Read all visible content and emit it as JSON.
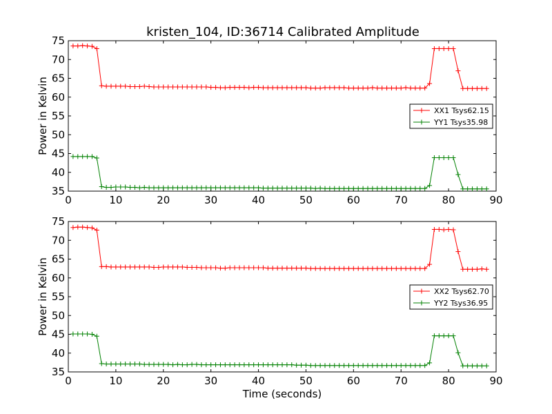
{
  "figure": {
    "title": "kristen_104, ID:36714 Calibrated Amplitude"
  },
  "chart_data": [
    {
      "type": "line",
      "title": "kristen_104, ID:36714 Calibrated Amplitude",
      "xlabel": "",
      "ylabel": "Power in Kelvin",
      "xlim": [
        0,
        90
      ],
      "ylim": [
        35,
        75
      ],
      "xticks": [
        "0",
        "10",
        "20",
        "30",
        "40",
        "50",
        "60",
        "70",
        "80",
        "90"
      ],
      "yticks": [
        "35",
        "40",
        "45",
        "50",
        "55",
        "60",
        "65",
        "70",
        "75"
      ],
      "grid": false,
      "legend_position": "center-right",
      "marker": "+",
      "series": [
        {
          "name": "XX1 Tsys62.15",
          "color": "#ff0000",
          "x": [
            1,
            2,
            3,
            4,
            5,
            6,
            7,
            8,
            9,
            10,
            11,
            12,
            13,
            14,
            15,
            16,
            17,
            18,
            19,
            20,
            21,
            22,
            23,
            24,
            25,
            26,
            27,
            28,
            29,
            30,
            31,
            32,
            33,
            34,
            35,
            36,
            37,
            38,
            39,
            40,
            41,
            42,
            43,
            44,
            45,
            46,
            47,
            48,
            49,
            50,
            51,
            52,
            53,
            54,
            55,
            56,
            57,
            58,
            59,
            60,
            61,
            62,
            63,
            64,
            65,
            66,
            67,
            68,
            69,
            70,
            71,
            72,
            73,
            74,
            75,
            76,
            77,
            78,
            79,
            80,
            81,
            82,
            83,
            84,
            85,
            86,
            87,
            88
          ],
          "y": [
            73.6,
            73.6,
            73.7,
            73.6,
            73.5,
            72.9,
            63.0,
            62.9,
            62.9,
            62.9,
            62.9,
            62.9,
            62.8,
            62.8,
            62.8,
            62.9,
            62.8,
            62.7,
            62.7,
            62.7,
            62.7,
            62.7,
            62.7,
            62.7,
            62.7,
            62.7,
            62.7,
            62.7,
            62.7,
            62.6,
            62.6,
            62.5,
            62.5,
            62.6,
            62.6,
            62.6,
            62.6,
            62.5,
            62.6,
            62.6,
            62.5,
            62.5,
            62.5,
            62.5,
            62.5,
            62.5,
            62.5,
            62.5,
            62.5,
            62.5,
            62.4,
            62.4,
            62.4,
            62.5,
            62.5,
            62.5,
            62.5,
            62.5,
            62.4,
            62.4,
            62.4,
            62.4,
            62.4,
            62.5,
            62.4,
            62.4,
            62.4,
            62.4,
            62.4,
            62.4,
            62.5,
            62.4,
            62.4,
            62.4,
            62.4,
            63.6,
            72.9,
            72.9,
            72.9,
            72.9,
            72.9,
            67.0,
            62.3,
            62.3,
            62.3,
            62.3,
            62.3,
            62.3
          ]
        },
        {
          "name": "YY1 Tsys35.98",
          "color": "#008000",
          "x": [
            1,
            2,
            3,
            4,
            5,
            6,
            7,
            8,
            9,
            10,
            11,
            12,
            13,
            14,
            15,
            16,
            17,
            18,
            19,
            20,
            21,
            22,
            23,
            24,
            25,
            26,
            27,
            28,
            29,
            30,
            31,
            32,
            33,
            34,
            35,
            36,
            37,
            38,
            39,
            40,
            41,
            42,
            43,
            44,
            45,
            46,
            47,
            48,
            49,
            50,
            51,
            52,
            53,
            54,
            55,
            56,
            57,
            58,
            59,
            60,
            61,
            62,
            63,
            64,
            65,
            66,
            67,
            68,
            69,
            70,
            71,
            72,
            73,
            74,
            75,
            76,
            77,
            78,
            79,
            80,
            81,
            82,
            83,
            84,
            85,
            86,
            87,
            88
          ],
          "y": [
            44.2,
            44.2,
            44.2,
            44.2,
            44.2,
            43.8,
            36.2,
            36.0,
            36.0,
            36.1,
            36.1,
            36.1,
            36.0,
            36.0,
            35.9,
            36.0,
            35.9,
            35.9,
            35.9,
            35.9,
            35.9,
            35.9,
            35.9,
            35.9,
            35.9,
            35.9,
            35.9,
            35.9,
            35.9,
            35.9,
            35.9,
            35.9,
            35.9,
            35.9,
            35.9,
            35.9,
            35.9,
            35.9,
            35.9,
            35.9,
            35.8,
            35.8,
            35.8,
            35.8,
            35.8,
            35.8,
            35.8,
            35.8,
            35.8,
            35.8,
            35.8,
            35.7,
            35.8,
            35.7,
            35.7,
            35.7,
            35.7,
            35.7,
            35.7,
            35.7,
            35.7,
            35.7,
            35.7,
            35.7,
            35.7,
            35.7,
            35.7,
            35.7,
            35.7,
            35.7,
            35.7,
            35.7,
            35.7,
            35.7,
            35.7,
            36.5,
            43.9,
            43.9,
            43.9,
            43.9,
            43.9,
            39.4,
            35.6,
            35.6,
            35.6,
            35.6,
            35.6,
            35.6
          ]
        }
      ]
    },
    {
      "type": "line",
      "title": "",
      "xlabel": "Time (seconds)",
      "ylabel": "Power in Kelvin",
      "xlim": [
        0,
        90
      ],
      "ylim": [
        35,
        75
      ],
      "xticks": [
        "0",
        "10",
        "20",
        "30",
        "40",
        "50",
        "60",
        "70",
        "80",
        "90"
      ],
      "yticks": [
        "35",
        "40",
        "45",
        "50",
        "55",
        "60",
        "65",
        "70",
        "75"
      ],
      "grid": false,
      "legend_position": "center-right",
      "marker": "+",
      "series": [
        {
          "name": "XX2 Tsys62.70",
          "color": "#ff0000",
          "x": [
            1,
            2,
            3,
            4,
            5,
            6,
            7,
            8,
            9,
            10,
            11,
            12,
            13,
            14,
            15,
            16,
            17,
            18,
            19,
            20,
            21,
            22,
            23,
            24,
            25,
            26,
            27,
            28,
            29,
            30,
            31,
            32,
            33,
            34,
            35,
            36,
            37,
            38,
            39,
            40,
            41,
            42,
            43,
            44,
            45,
            46,
            47,
            48,
            49,
            50,
            51,
            52,
            53,
            54,
            55,
            56,
            57,
            58,
            59,
            60,
            61,
            62,
            63,
            64,
            65,
            66,
            67,
            68,
            69,
            70,
            71,
            72,
            73,
            74,
            75,
            76,
            77,
            78,
            79,
            80,
            81,
            82,
            83,
            84,
            85,
            86,
            87,
            88
          ],
          "y": [
            73.4,
            73.5,
            73.5,
            73.4,
            73.3,
            72.7,
            63.0,
            63.0,
            62.9,
            62.9,
            62.9,
            62.9,
            62.9,
            62.9,
            62.9,
            62.9,
            62.9,
            62.8,
            62.8,
            62.9,
            62.9,
            62.9,
            62.9,
            62.9,
            62.8,
            62.8,
            62.8,
            62.7,
            62.7,
            62.7,
            62.7,
            62.6,
            62.6,
            62.7,
            62.7,
            62.7,
            62.7,
            62.7,
            62.7,
            62.7,
            62.7,
            62.6,
            62.6,
            62.6,
            62.6,
            62.6,
            62.6,
            62.6,
            62.6,
            62.6,
            62.5,
            62.5,
            62.5,
            62.5,
            62.5,
            62.5,
            62.5,
            62.5,
            62.5,
            62.5,
            62.5,
            62.5,
            62.5,
            62.5,
            62.5,
            62.5,
            62.5,
            62.5,
            62.5,
            62.5,
            62.5,
            62.5,
            62.5,
            62.5,
            62.5,
            63.6,
            72.9,
            72.9,
            72.8,
            72.9,
            72.8,
            67.0,
            62.3,
            62.3,
            62.3,
            62.3,
            62.4,
            62.3
          ]
        },
        {
          "name": "YY2 Tsys36.95",
          "color": "#008000",
          "x": [
            1,
            2,
            3,
            4,
            5,
            6,
            7,
            8,
            9,
            10,
            11,
            12,
            13,
            14,
            15,
            16,
            17,
            18,
            19,
            20,
            21,
            22,
            23,
            24,
            25,
            26,
            27,
            28,
            29,
            30,
            31,
            32,
            33,
            34,
            35,
            36,
            37,
            38,
            39,
            40,
            41,
            42,
            43,
            44,
            45,
            46,
            47,
            48,
            49,
            50,
            51,
            52,
            53,
            54,
            55,
            56,
            57,
            58,
            59,
            60,
            61,
            62,
            63,
            64,
            65,
            66,
            67,
            68,
            69,
            70,
            71,
            72,
            73,
            74,
            75,
            76,
            77,
            78,
            79,
            80,
            81,
            82,
            83,
            84,
            85,
            86,
            87,
            88
          ],
          "y": [
            45.1,
            45.1,
            45.1,
            45.1,
            45.0,
            44.5,
            37.2,
            37.1,
            37.1,
            37.1,
            37.1,
            37.1,
            37.1,
            37.1,
            37.1,
            37.0,
            37.0,
            37.0,
            37.0,
            37.0,
            37.0,
            36.9,
            37.0,
            36.9,
            36.9,
            37.0,
            37.0,
            36.9,
            36.9,
            36.9,
            36.9,
            36.9,
            36.9,
            36.9,
            36.9,
            36.9,
            36.9,
            36.9,
            36.9,
            36.9,
            36.9,
            36.9,
            36.9,
            36.9,
            36.9,
            36.9,
            36.9,
            36.8,
            36.8,
            36.8,
            36.7,
            36.7,
            36.7,
            36.7,
            36.7,
            36.7,
            36.7,
            36.7,
            36.7,
            36.7,
            36.7,
            36.7,
            36.7,
            36.7,
            36.7,
            36.7,
            36.7,
            36.7,
            36.7,
            36.7,
            36.7,
            36.7,
            36.7,
            36.7,
            36.7,
            37.4,
            44.6,
            44.6,
            44.6,
            44.6,
            44.6,
            40.1,
            36.6,
            36.6,
            36.6,
            36.6,
            36.6,
            36.6
          ]
        }
      ]
    }
  ]
}
